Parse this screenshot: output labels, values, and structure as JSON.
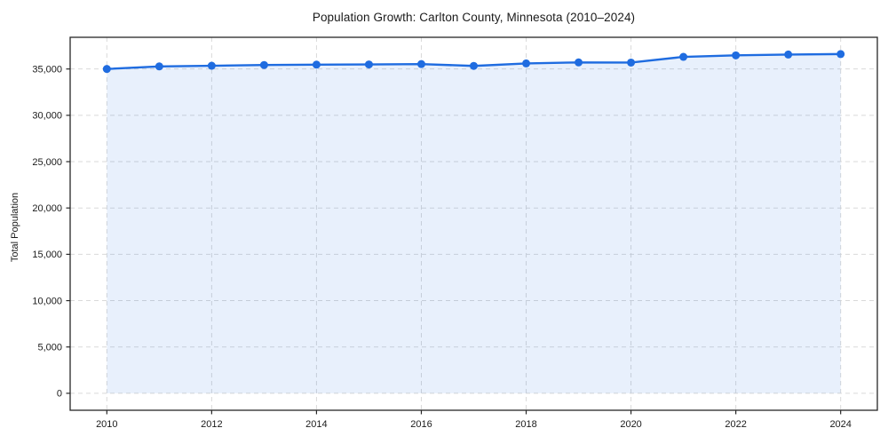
{
  "chart_data": {
    "type": "area",
    "title": "Population Growth: Carlton County, Minnesota (2010–2024)",
    "xlabel": "",
    "ylabel": "Total Population",
    "x": [
      2010,
      2011,
      2012,
      2013,
      2014,
      2015,
      2016,
      2017,
      2018,
      2019,
      2020,
      2021,
      2022,
      2023,
      2024
    ],
    "series": [
      {
        "name": "Total Population",
        "values": [
          35000,
          35280,
          35350,
          35430,
          35470,
          35490,
          35530,
          35330,
          35600,
          35710,
          35690,
          36310,
          36470,
          36560,
          36610
        ]
      }
    ],
    "xlim": [
      2009.3,
      2024.7
    ],
    "ylim": [
      -1830,
      38420
    ],
    "x_ticks": {
      "values": [
        2010,
        2012,
        2014,
        2016,
        2018,
        2020,
        2022,
        2024
      ],
      "labels": [
        "2010",
        "2012",
        "2014",
        "2016",
        "2018",
        "2020",
        "2022",
        "2024"
      ]
    },
    "y_ticks": {
      "values": [
        0,
        5000,
        10000,
        15000,
        20000,
        25000,
        30000,
        35000
      ],
      "labels": [
        "0",
        "5,000",
        "10,000",
        "15,000",
        "20,000",
        "25,000",
        "30,000",
        "35,000"
      ]
    },
    "grid": true,
    "grid_style": "dashed",
    "legend": "none",
    "colors": {
      "line": "#1f6ce0",
      "marker": "#1f6ce0",
      "fill": "#1f6ce0",
      "fill_opacity": 0.1,
      "grid": "#d9d9d9",
      "spine": "#262626",
      "text": "#1a1a1a",
      "background": "#ffffff"
    }
  }
}
